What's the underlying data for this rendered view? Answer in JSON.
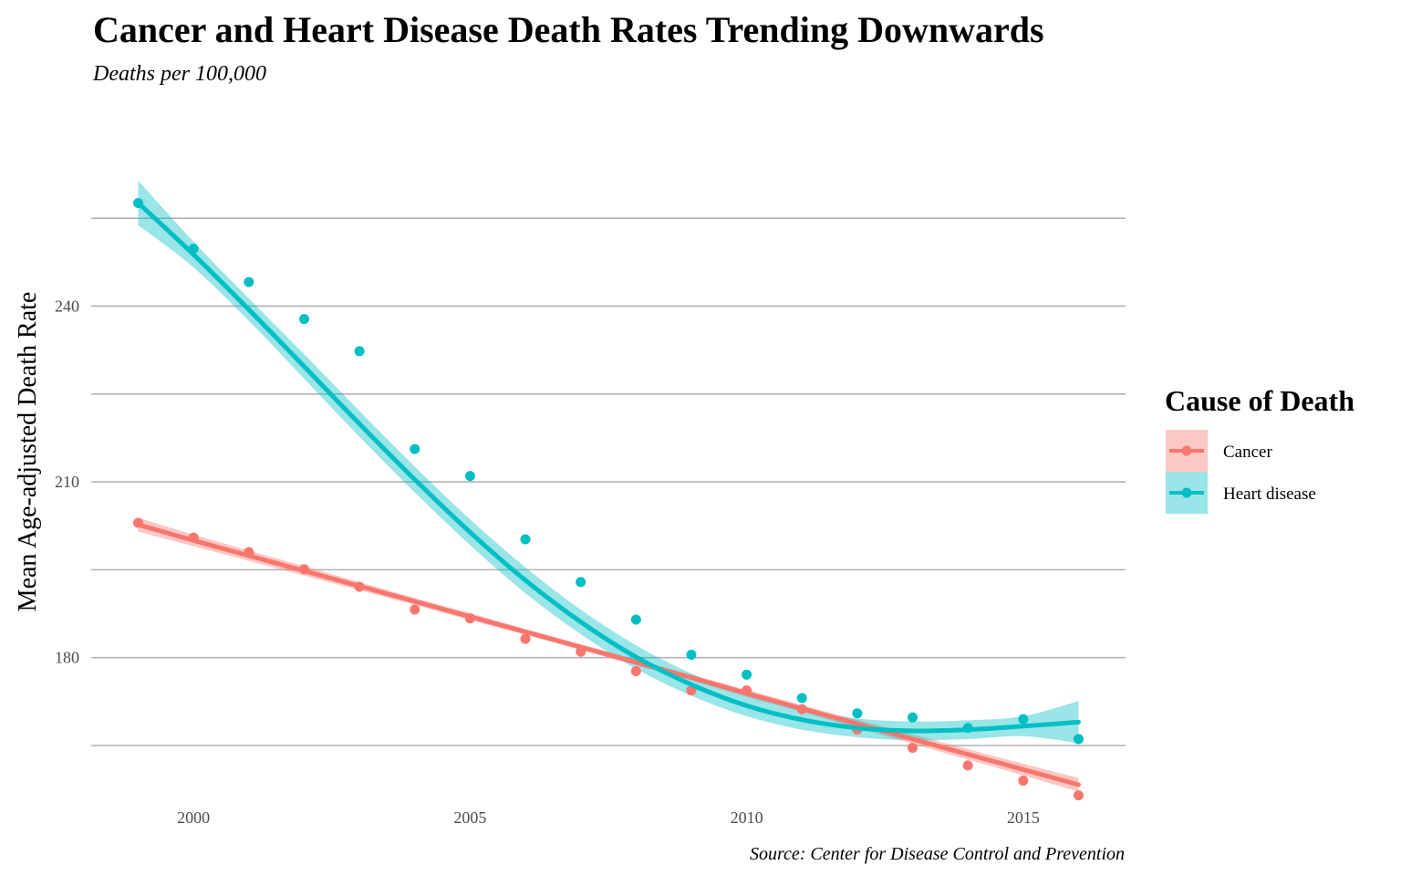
{
  "chart_data": {
    "type": "line",
    "title": "Cancer and Heart Disease Death Rates Trending Downwards",
    "subtitle": "Deaths per 100,000",
    "caption": "Source: Center for Disease Control and Prevention",
    "xlabel": "",
    "ylabel": "Mean Age-adjusted Death Rate",
    "xlim": [
      1998.15,
      2016.85
    ],
    "ylim": [
      155.5,
      272
    ],
    "x_ticks": [
      2000,
      2005,
      2010,
      2015
    ],
    "x_tick_labels": [
      "2000",
      "2005",
      "2010",
      "2015"
    ],
    "y_ticks": [
      180,
      210,
      240
    ],
    "y_tick_labels": [
      "180",
      "210",
      "240"
    ],
    "y_minor_gridlines": [
      165,
      195,
      225,
      255
    ],
    "grid": true,
    "legend": {
      "title": "Cause of Death",
      "position": "right"
    },
    "series": [
      {
        "name": "Cancer",
        "color": "#F8766D",
        "band_color": "#F8766D",
        "x": [
          1999,
          2000,
          2001,
          2002,
          2003,
          2004,
          2005,
          2006,
          2007,
          2008,
          2009,
          2010,
          2011,
          2012,
          2013,
          2014,
          2015,
          2016
        ],
        "values": [
          203.0,
          200.5,
          198.0,
          195.1,
          192.1,
          188.2,
          186.7,
          183.2,
          181.0,
          177.7,
          174.4,
          174.4,
          171.2,
          167.7,
          164.6,
          161.6,
          159.0,
          156.5
        ],
        "trend": [
          202.7,
          200.0,
          197.4,
          194.8,
          192.2,
          189.6,
          187.0,
          184.4,
          181.8,
          179.2,
          176.6,
          173.9,
          171.3,
          168.7,
          166.1,
          163.5,
          160.9,
          158.3
        ],
        "trend_band_halfwidth": [
          1.2,
          1.0,
          0.9,
          0.8,
          0.7,
          0.6,
          0.6,
          0.5,
          0.5,
          0.5,
          0.5,
          0.6,
          0.6,
          0.7,
          0.8,
          0.9,
          1.0,
          1.2
        ]
      },
      {
        "name": "Heart disease",
        "color": "#00BFC4",
        "band_color": "#00BFC4",
        "x": [
          1999,
          2000,
          2001,
          2002,
          2003,
          2004,
          2005,
          2006,
          2007,
          2008,
          2009,
          2010,
          2011,
          2012,
          2013,
          2014,
          2015,
          2016
        ],
        "values": [
          257.6,
          249.8,
          244.1,
          237.8,
          232.3,
          215.6,
          211.0,
          200.2,
          192.9,
          186.5,
          180.5,
          177.1,
          173.1,
          170.5,
          169.8,
          168.0,
          169.5,
          166.1
        ],
        "trend": [
          257.6,
          248.8,
          239.4,
          229.7,
          219.9,
          210.4,
          201.4,
          193.2,
          186.1,
          180.1,
          175.4,
          171.8,
          169.4,
          168.0,
          167.5,
          167.7,
          168.3,
          169.0
        ],
        "trend_band_halfwidth": [
          3.8,
          2.2,
          1.9,
          2.1,
          2.2,
          2.2,
          2.2,
          2.2,
          2.1,
          2.0,
          1.9,
          1.8,
          1.7,
          1.6,
          1.6,
          1.6,
          1.7,
          3.6
        ]
      }
    ]
  }
}
